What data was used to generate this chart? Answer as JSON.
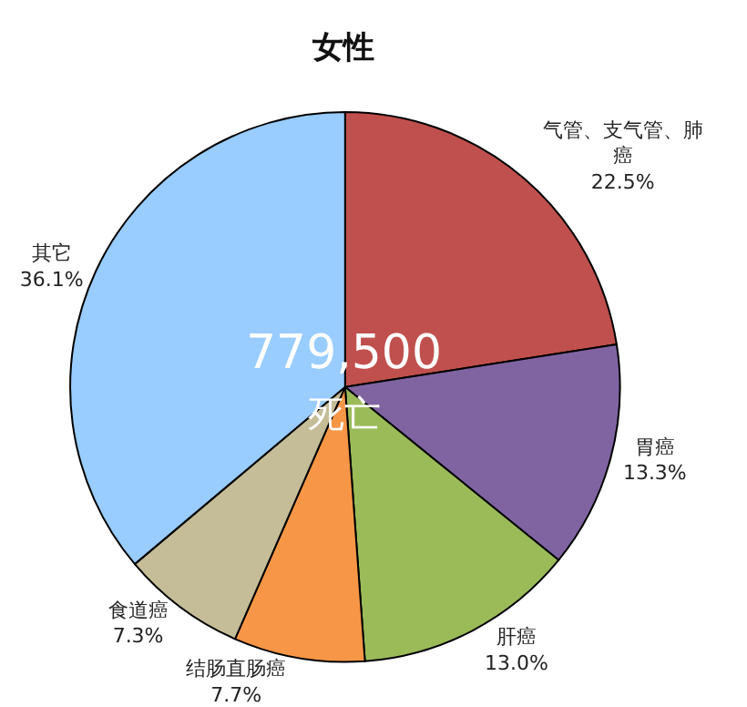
{
  "chart_data": {
    "type": "pie",
    "title": "女性",
    "categories": [
      "气管、支气管、肺癌",
      "胃癌",
      "肝癌",
      "结肠直肠癌",
      "食道癌",
      "其它"
    ],
    "values": [
      22.5,
      13.3,
      13.0,
      7.7,
      7.3,
      36.1
    ],
    "colors": [
      "#c0504d",
      "#8064a2",
      "#9bbb59",
      "#f79646",
      "#c4bd97",
      "#99ccff"
    ],
    "value_labels": [
      "22.5%",
      "13.3%",
      "13.0%",
      "7.7%",
      "7.3%",
      "36.1%"
    ],
    "annotations": [
      "779,500",
      "死亡"
    ]
  }
}
